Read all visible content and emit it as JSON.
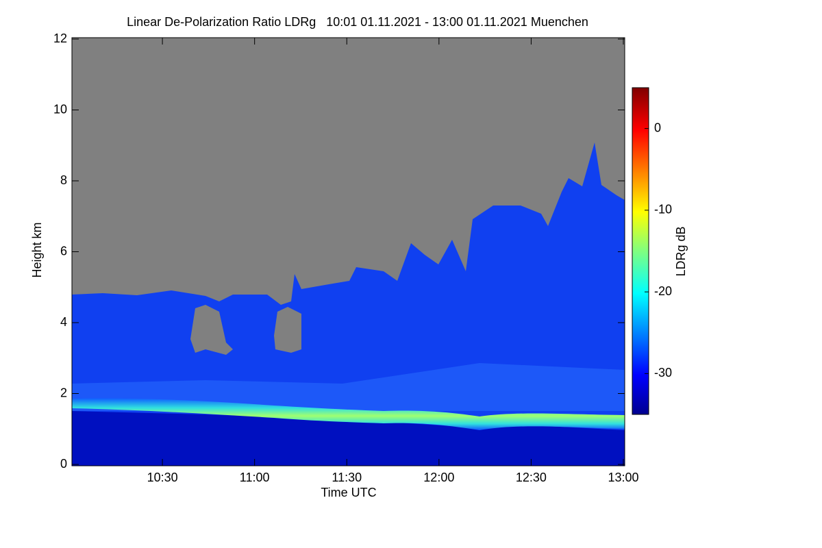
{
  "chart_data": {
    "type": "heatmap",
    "title": "Linear De-Polarization Ratio LDRg   10:01 01.11.2021 - 13:00 01.11.2021 Muenchen",
    "xlabel": "Time UTC",
    "ylabel": "Height km",
    "xlim": [
      10.0167,
      13.0
    ],
    "xticks": [
      {
        "value": 10.5,
        "label": "10:30"
      },
      {
        "value": 11.0,
        "label": "11:00"
      },
      {
        "value": 11.5,
        "label": "11:30"
      },
      {
        "value": 12.0,
        "label": "12:00"
      },
      {
        "value": 12.5,
        "label": "12:30"
      },
      {
        "value": 13.0,
        "label": "13:00"
      }
    ],
    "ylim": [
      0,
      12
    ],
    "yticks": [
      0,
      2,
      4,
      6,
      8,
      10,
      12
    ],
    "colorbar_label": "LDRg dB",
    "clim": [
      -35,
      5
    ],
    "cticks": [
      0,
      -10,
      -20,
      -30
    ]
  }
}
